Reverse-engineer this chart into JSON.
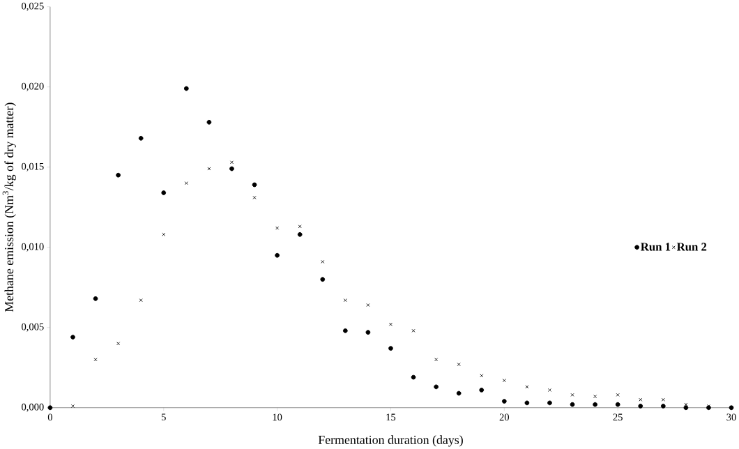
{
  "chart_data": {
    "type": "scatter",
    "xlabel": "Fermentation duration (days)",
    "ylabel": "Methane emission (Nm$^{3}$/kg of dry matter)",
    "x": [
      0,
      1,
      2,
      3,
      4,
      5,
      6,
      7,
      8,
      9,
      10,
      11,
      12,
      13,
      14,
      15,
      16,
      17,
      18,
      19,
      20,
      21,
      22,
      23,
      24,
      25,
      26,
      27,
      28,
      29,
      30
    ],
    "series": [
      {
        "name": "Run 1",
        "color": "#000000",
        "marker": "circle",
        "values": [
          0,
          0.0044,
          0.0068,
          0.0145,
          0.0168,
          0.0134,
          0.0199,
          0.0178,
          0.0149,
          0.0139,
          0.0095,
          0.0108,
          0.008,
          0.0048,
          0.0047,
          0.0037,
          0.0019,
          0.0013,
          0.0009,
          0.0011,
          0.0004,
          0.0003,
          0.0003,
          0.0002,
          0.0002,
          0.0002,
          0.0001,
          0.0001,
          0,
          0,
          0
        ]
      },
      {
        "name": "Run 2",
        "color": "#000000",
        "marker": "cross",
        "values": [
          0,
          0.0001,
          0.003,
          0.004,
          0.0067,
          0.0108,
          0.014,
          0.0149,
          0.0153,
          0.0131,
          0.0112,
          0.0113,
          0.0091,
          0.0067,
          0.0064,
          0.0052,
          0.0048,
          0.003,
          0.0027,
          0.002,
          0.0017,
          0.0013,
          0.0011,
          0.0008,
          0.0007,
          0.0008,
          0.0005,
          0.0005,
          0.0002,
          0.0001,
          0
        ]
      }
    ],
    "xlim": [
      0,
      30
    ],
    "xticks": [
      0,
      5,
      10,
      15,
      20,
      25,
      30
    ],
    "ylim": [
      0,
      0.025
    ],
    "yticks": [
      {
        "value": 0,
        "label": "0,000"
      },
      {
        "value": 0.005,
        "label": "0,005"
      },
      {
        "value": 0.01,
        "label": "0,010"
      },
      {
        "value": 0.015,
        "label": "0,015"
      },
      {
        "value": 0.02,
        "label": "0,020"
      },
      {
        "value": 0.025,
        "label": "0,025"
      }
    ],
    "legend": "right",
    "grid": false
  }
}
